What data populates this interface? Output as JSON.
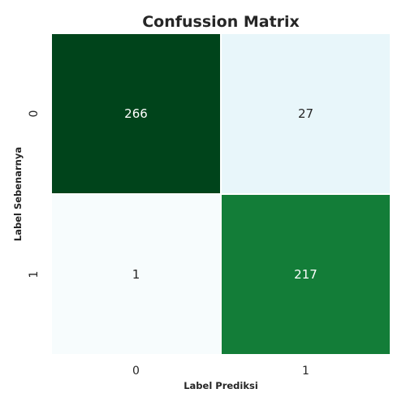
{
  "chart_data": {
    "type": "heatmap",
    "title": "Confussion Matrix",
    "xlabel": "Label Prediksi",
    "ylabel": "Label Sebenarnya",
    "x_categories": [
      "0",
      "1"
    ],
    "y_categories": [
      "0",
      "1"
    ],
    "values": [
      [
        266,
        27
      ],
      [
        1,
        217
      ]
    ],
    "colormap": "greens",
    "colorbar": false,
    "grid_lines": true,
    "cell_colors": [
      [
        "#00441b",
        "#e8f6fa"
      ],
      [
        "#f7fcfd",
        "#137d38"
      ]
    ],
    "text_colors": [
      [
        "#ffffff",
        "#262626"
      ],
      [
        "#262626",
        "#ffffff"
      ]
    ]
  }
}
